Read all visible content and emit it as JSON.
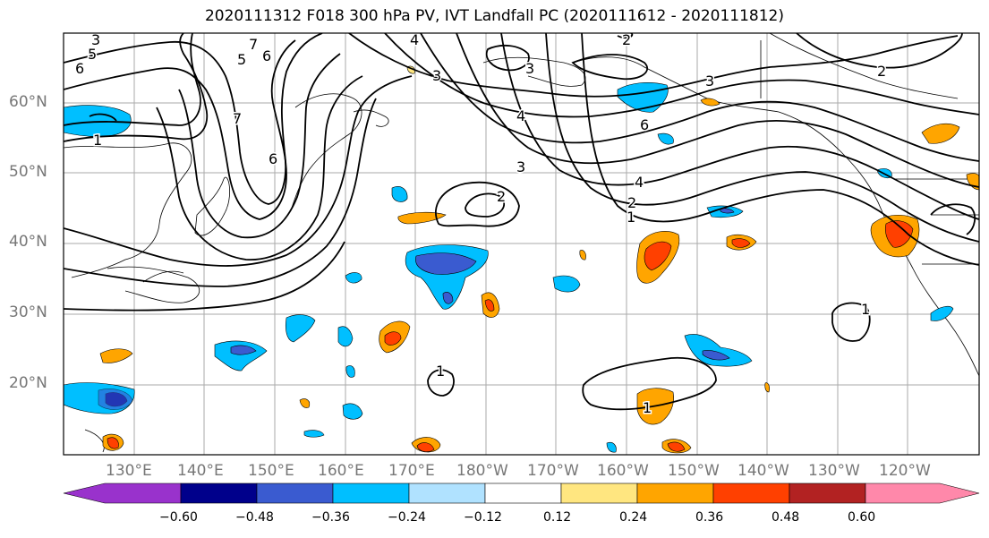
{
  "title": "2020111312 F018 300 hPa PV, IVT Landfall PC (2020111612 - 2020111812)",
  "lat_labels": [
    "60°N",
    "50°N",
    "40°N",
    "30°N",
    "20°N"
  ],
  "lon_labels": [
    "130°E",
    "140°E",
    "150°E",
    "160°E",
    "170°E",
    "180°W",
    "170°W",
    "160°W",
    "150°W",
    "140°W",
    "130°W",
    "120°W"
  ],
  "pv_contour_labels": [
    "1",
    "2",
    "3",
    "4",
    "5",
    "6",
    "7"
  ],
  "colorbar": {
    "ticks": [
      "−0.60",
      "−0.48",
      "−0.36",
      "−0.24",
      "−0.12",
      "0.12",
      "0.24",
      "0.36",
      "0.48",
      "0.60"
    ],
    "colors": [
      "#9932cc",
      "#00008b",
      "#3a5bd0",
      "#00bfff",
      "#b0e2ff",
      "#ffffff",
      "#ffe680",
      "#ffa500",
      "#ff4000",
      "#b22222",
      "#ff88aa"
    ]
  }
}
